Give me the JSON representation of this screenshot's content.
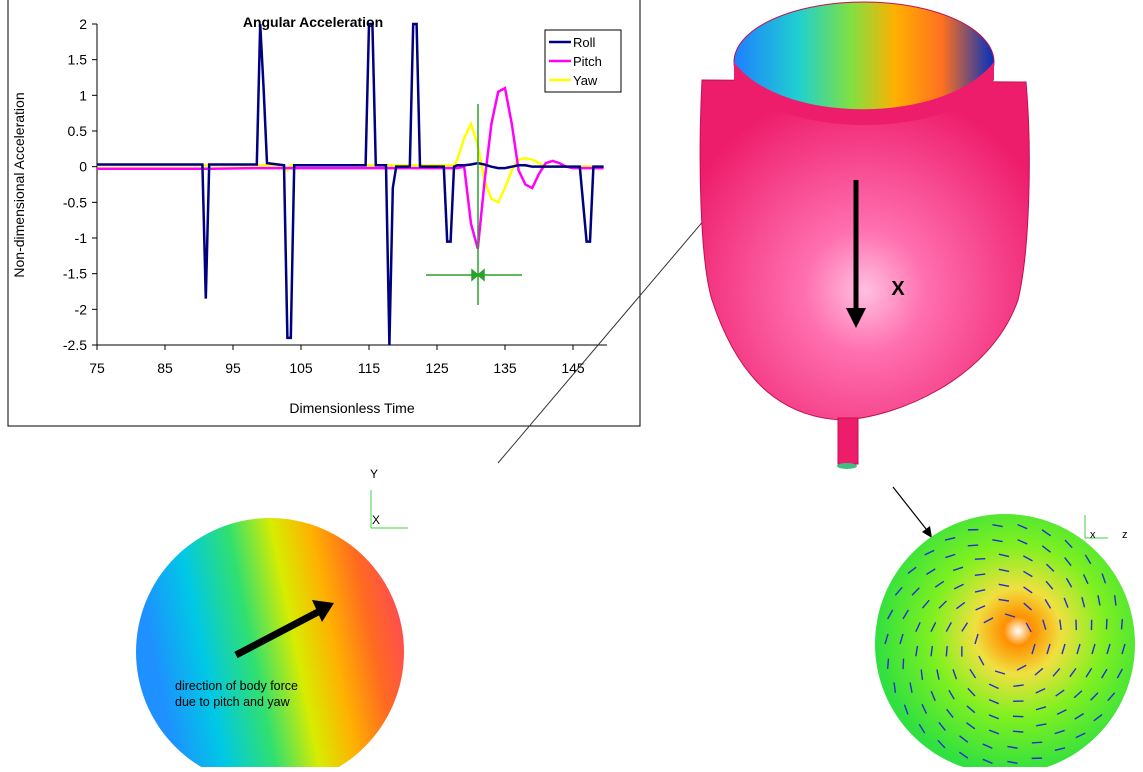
{
  "chart_data": {
    "type": "line",
    "title": "Angular Acceleration",
    "x_label": "Dimensionless Time",
    "y_label": "Non-dimensional Acceleration",
    "x": [
      75,
      90.5,
      91,
      91.5,
      92,
      98.5,
      99,
      99.5,
      100,
      102.5,
      103,
      103.5,
      104,
      114.5,
      115,
      115.5,
      116,
      117.5,
      118,
      118.5,
      119,
      121,
      121.5,
      122,
      122.5,
      126,
      126.5,
      127,
      127.5,
      128,
      129,
      130,
      131,
      132,
      133,
      134,
      135,
      136,
      137,
      138,
      139,
      140,
      141,
      142,
      143,
      144,
      145,
      146,
      147,
      147.5,
      148,
      149.5
    ],
    "series": [
      {
        "name": "Roll",
        "color": "#000080",
        "values": [
          0.03,
          0.03,
          -1.85,
          0.03,
          0.03,
          0.03,
          2,
          1.1,
          0.05,
          0.02,
          -2.4,
          -2.4,
          0.02,
          0.02,
          2,
          2,
          0.02,
          0.02,
          -2.5,
          -0.3,
          0,
          0,
          2,
          2,
          0,
          0,
          -1.05,
          -1.05,
          0,
          0.02,
          0.02,
          0.03,
          0.05,
          0.03,
          0,
          -0.02,
          -0.02,
          0,
          0.02,
          0.02,
          0,
          0,
          0,
          0,
          0,
          0,
          0,
          0,
          -1.05,
          -1.05,
          0,
          0
        ]
      },
      {
        "name": "Pitch",
        "color": "#ff00ff",
        "values": [
          -0.03,
          -0.03,
          -0.03,
          -0.03,
          -0.03,
          -0.02,
          -0.02,
          -0.02,
          -0.02,
          -0.02,
          -0.02,
          -0.02,
          -0.02,
          -0.02,
          -0.02,
          -0.02,
          -0.02,
          -0.02,
          -0.02,
          -0.02,
          -0.02,
          -0.02,
          -0.02,
          -0.02,
          -0.02,
          -0.02,
          -0.02,
          -0.02,
          -0.02,
          -0.02,
          0,
          -0.8,
          -1.15,
          -0.2,
          0.6,
          1.05,
          1.1,
          0.6,
          -0.05,
          -0.25,
          -0.3,
          -0.1,
          0.05,
          0.08,
          0.05,
          0,
          -0.02,
          -0.02,
          -0.02,
          -0.02,
          -0.02,
          -0.02
        ]
      },
      {
        "name": "Yaw",
        "color": "#ffff00",
        "values": [
          0.02,
          0.02,
          0.02,
          0.02,
          0.02,
          0.02,
          0.02,
          0.02,
          0.02,
          0.02,
          -0.05,
          0.02,
          0.02,
          0.02,
          0.02,
          0.02,
          0.02,
          0.02,
          0.02,
          0.02,
          0.02,
          0.02,
          0.02,
          0.02,
          0.02,
          0.02,
          0.02,
          0.02,
          0.02,
          0.1,
          0.4,
          0.6,
          0.3,
          -0.2,
          -0.45,
          -0.5,
          -0.3,
          -0.05,
          0.1,
          0.12,
          0.1,
          0.05,
          0,
          0,
          0,
          0,
          0,
          0,
          0,
          0,
          0,
          0
        ]
      }
    ],
    "xlim": [
      75,
      150
    ],
    "xticks": [
      75,
      85,
      95,
      105,
      115,
      125,
      135,
      145
    ],
    "ylim": [
      -2.5,
      2
    ],
    "yticks": [
      -2.5,
      -2,
      -1.5,
      -1,
      -0.5,
      0,
      0.5,
      1,
      1.5,
      2
    ],
    "legend": "upper right"
  },
  "figure": {
    "vessel_axis": "X",
    "left_axes": [
      "Y",
      "X"
    ],
    "left_caption": [
      "direction of body force",
      "due to pitch and yaw"
    ],
    "right_axes": [
      "x",
      "z"
    ]
  }
}
